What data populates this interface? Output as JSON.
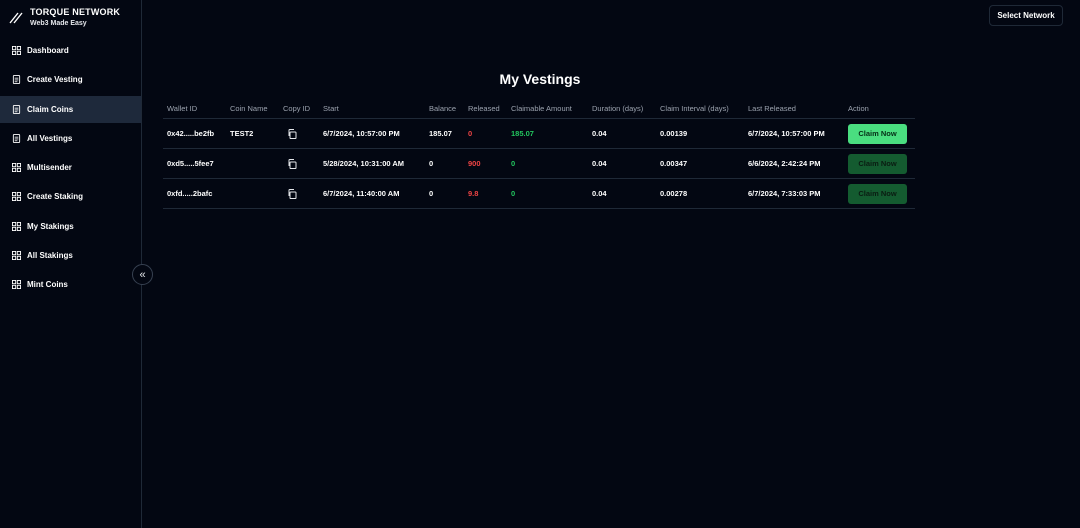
{
  "brand": {
    "title": "TORQUE NETWORK",
    "subtitle": "Web3 Made Easy"
  },
  "sidebar": {
    "items": [
      {
        "label": "Dashboard",
        "icon": "grid-icon"
      },
      {
        "label": "Create Vesting",
        "icon": "document-icon"
      },
      {
        "label": "Claim Coins",
        "icon": "document-icon",
        "active": true
      },
      {
        "label": "All Vestings",
        "icon": "document-icon"
      },
      {
        "label": "Multisender",
        "icon": "grid-icon"
      },
      {
        "label": "Create Staking",
        "icon": "grid-icon"
      },
      {
        "label": "My Stakings",
        "icon": "grid-icon"
      },
      {
        "label": "All Stakings",
        "icon": "grid-icon"
      },
      {
        "label": "Mint Coins",
        "icon": "grid-icon"
      }
    ],
    "collapse_icon": "«"
  },
  "header": {
    "select_network_label": "Select Network"
  },
  "main": {
    "title": "My Vestings",
    "columns": [
      "Wallet ID",
      "Coin Name",
      "Copy ID",
      "Start",
      "Balance",
      "Released",
      "Claimable Amount",
      "Duration (days)",
      "Claim Interval (days)",
      "Last Released",
      "Action"
    ],
    "rows": [
      {
        "wallet": "0x42.....be2fb",
        "coin": "TEST2",
        "start": "6/7/2024, 10:57:00 PM",
        "balance": "185.07",
        "released": "0",
        "claimable": "185.07",
        "duration": "0.04",
        "interval": "0.00139",
        "last_released": "6/7/2024, 10:57:00 PM",
        "action": "Claim Now",
        "enabled": true
      },
      {
        "wallet": "0xd5.....5fee7",
        "coin": "",
        "start": "5/28/2024, 10:31:00 AM",
        "balance": "0",
        "released": "900",
        "claimable": "0",
        "duration": "0.04",
        "interval": "0.00347",
        "last_released": "6/6/2024, 2:42:24 PM",
        "action": "Claim Now",
        "enabled": false
      },
      {
        "wallet": "0xfd.....2bafc",
        "coin": "",
        "start": "6/7/2024, 11:40:00 AM",
        "balance": "0",
        "released": "9.8",
        "claimable": "0",
        "duration": "0.04",
        "interval": "0.00278",
        "last_released": "6/7/2024, 7:33:03 PM",
        "action": "Claim Now",
        "enabled": false
      }
    ]
  },
  "colors": {
    "background": "#030712",
    "accent_green": "#4ade80",
    "released_red": "#ef4444",
    "claimable_green": "#22c55e",
    "active_nav": "#1e293b"
  }
}
